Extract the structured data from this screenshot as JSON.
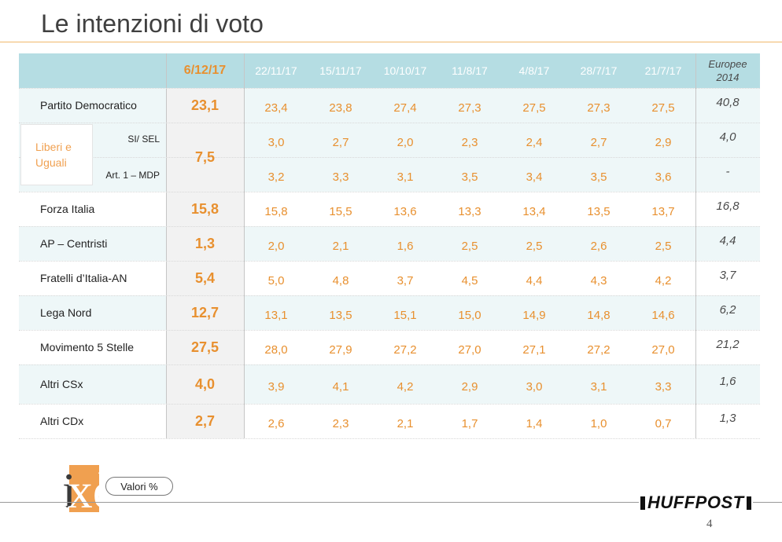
{
  "page": {
    "title": "Le intenzioni di voto",
    "page_number": "4"
  },
  "footer": {
    "logo_text": "ixè",
    "pill_label": "Valori %",
    "brand": "HUFFPOST"
  },
  "colors": {
    "accent_orange": "#e8902f",
    "header_bg": "#b5dde3",
    "row_shade": "#eef7f8",
    "current_col_bg": "#f2f2f2"
  },
  "table": {
    "current_header": "6/12/17",
    "date_headers": [
      "22/11/17",
      "15/11/17",
      "10/10/17",
      "11/8/17",
      "4/8/17",
      "28/7/17",
      "21/7/17"
    ],
    "europee_header": [
      "Europee",
      "2014"
    ],
    "group_label": [
      "Liberi e",
      "Uguali"
    ],
    "group_current": "7,5",
    "rows": [
      {
        "label": "Partito Democratico",
        "current": "23,1",
        "values": [
          "23,4",
          "23,8",
          "27,4",
          "27,3",
          "27,5",
          "27,3",
          "27,5"
        ],
        "europee": "40,8"
      },
      {
        "label": "SI/ SEL",
        "current": "",
        "values": [
          "3,0",
          "2,7",
          "2,0",
          "2,3",
          "2,4",
          "2,7",
          "2,9"
        ],
        "europee": "4,0"
      },
      {
        "label": "Art. 1 – MDP",
        "current": "",
        "values": [
          "3,2",
          "3,3",
          "3,1",
          "3,5",
          "3,4",
          "3,5",
          "3,6"
        ],
        "europee": "-"
      },
      {
        "label": "Forza Italia",
        "current": "15,8",
        "values": [
          "15,8",
          "15,5",
          "13,6",
          "13,3",
          "13,4",
          "13,5",
          "13,7"
        ],
        "europee": "16,8"
      },
      {
        "label": "AP – Centristi",
        "current": "1,3",
        "values": [
          "2,0",
          "2,1",
          "1,6",
          "2,5",
          "2,5",
          "2,6",
          "2,5"
        ],
        "europee": "4,4"
      },
      {
        "label": "Fratelli d’Italia-AN",
        "current": "5,4",
        "values": [
          "5,0",
          "4,8",
          "3,7",
          "4,5",
          "4,4",
          "4,3",
          "4,2"
        ],
        "europee": "3,7"
      },
      {
        "label": "Lega Nord",
        "current": "12,7",
        "values": [
          "13,1",
          "13,5",
          "15,1",
          "15,0",
          "14,9",
          "14,8",
          "14,6"
        ],
        "europee": "6,2"
      },
      {
        "label": "Movimento 5 Stelle",
        "current": "27,5",
        "values": [
          "28,0",
          "27,9",
          "27,2",
          "27,0",
          "27,1",
          "27,2",
          "27,0"
        ],
        "europee": "21,2"
      },
      {
        "label": "Altri CSx",
        "current": "4,0",
        "values": [
          "3,9",
          "4,1",
          "4,2",
          "2,9",
          "3,0",
          "3,1",
          "3,3"
        ],
        "europee": "1,6"
      },
      {
        "label": "Altri CDx",
        "current": "2,7",
        "values": [
          "2,6",
          "2,3",
          "2,1",
          "1,7",
          "1,4",
          "1,0",
          "0,7"
        ],
        "europee": "1,3"
      }
    ]
  },
  "chart_data": {
    "type": "table",
    "title": "Le intenzioni di voto",
    "columns": [
      "6/12/17",
      "22/11/17",
      "15/11/17",
      "10/10/17",
      "11/8/17",
      "4/8/17",
      "28/7/17",
      "21/7/17",
      "Europee 2014"
    ],
    "series": [
      {
        "name": "Partito Democratico",
        "values": [
          23.1,
          23.4,
          23.8,
          27.4,
          27.3,
          27.5,
          27.3,
          27.5,
          40.8
        ]
      },
      {
        "name": "Liberi e Uguali",
        "values": [
          7.5,
          null,
          null,
          null,
          null,
          null,
          null,
          null,
          null
        ]
      },
      {
        "name": "SI/ SEL",
        "values": [
          null,
          3.0,
          2.7,
          2.0,
          2.3,
          2.4,
          2.7,
          2.9,
          4.0
        ]
      },
      {
        "name": "Art. 1 – MDP",
        "values": [
          null,
          3.2,
          3.3,
          3.1,
          3.5,
          3.4,
          3.5,
          3.6,
          null
        ]
      },
      {
        "name": "Forza Italia",
        "values": [
          15.8,
          15.8,
          15.5,
          13.6,
          13.3,
          13.4,
          13.5,
          13.7,
          16.8
        ]
      },
      {
        "name": "AP – Centristi",
        "values": [
          1.3,
          2.0,
          2.1,
          1.6,
          2.5,
          2.5,
          2.6,
          2.5,
          4.4
        ]
      },
      {
        "name": "Fratelli d’Italia-AN",
        "values": [
          5.4,
          5.0,
          4.8,
          3.7,
          4.5,
          4.4,
          4.3,
          4.2,
          3.7
        ]
      },
      {
        "name": "Lega Nord",
        "values": [
          12.7,
          13.1,
          13.5,
          15.1,
          15.0,
          14.9,
          14.8,
          14.6,
          6.2
        ]
      },
      {
        "name": "Movimento 5 Stelle",
        "values": [
          27.5,
          28.0,
          27.9,
          27.2,
          27.0,
          27.1,
          27.2,
          27.0,
          21.2
        ]
      },
      {
        "name": "Altri CSx",
        "values": [
          4.0,
          3.9,
          4.1,
          4.2,
          2.9,
          3.0,
          3.1,
          3.3,
          1.6
        ]
      },
      {
        "name": "Altri CDx",
        "values": [
          2.7,
          2.6,
          2.3,
          2.1,
          1.7,
          1.4,
          1.0,
          0.7,
          1.3
        ]
      }
    ]
  }
}
